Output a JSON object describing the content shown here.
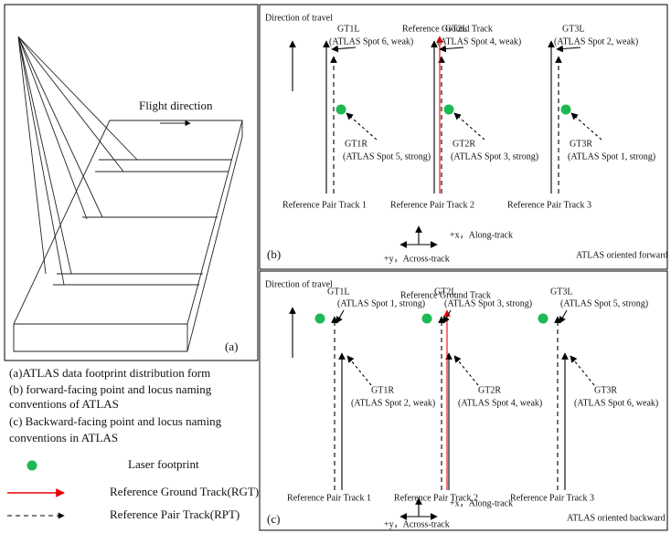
{
  "panel_a": {
    "flight_direction": "Flight direction",
    "label": "(a)"
  },
  "legend": {
    "captions": [
      "(a)ATLAS data footprint distribution form",
      "(b) forward-facing point and locus naming",
      "conventions of ATLAS",
      "(c) Backward-facing point and locus naming",
      "conventions in ATLAS"
    ],
    "items": [
      "Laser footprint",
      "Reference Ground Track(RGT)",
      "Reference  Pair Track(RPT)"
    ]
  },
  "panels": [
    {
      "direction": "Direction of travel",
      "rgt": "Reference Ground Track",
      "label": "(b)",
      "along": "+x，Along-track",
      "across": "+y，Across-track",
      "orientation": "ATLAS oriented forward",
      "pairs": [
        {
          "left": "GT1L",
          "left_spot": "(ATLAS Spot 6, weak)",
          "right": "GT1R",
          "right_spot": "(ATLAS Spot 5, strong)",
          "name": "Reference Pair Track 1"
        },
        {
          "left": "GT2L",
          "left_spot": "(ATLAS Spot 4, weak)",
          "right": "GT2R",
          "right_spot": "(ATLAS Spot 3, strong)",
          "name": "Reference Pair Track 2"
        },
        {
          "left": "GT3L",
          "left_spot": "(ATLAS Spot 2, weak)",
          "right": "GT3R",
          "right_spot": "(ATLAS Spot 1, strong)",
          "name": "Reference Pair Track 3"
        }
      ]
    },
    {
      "direction": "Direction of travel",
      "rgt": "Reference Ground Track",
      "label": "(c)",
      "along": "+x，Along-track",
      "across": "+y，Across-track",
      "orientation": "ATLAS oriented backward",
      "pairs": [
        {
          "left": "GT1L",
          "left_spot": "(ATLAS Spot 1, strong)",
          "right": "GT1R",
          "right_spot": "(ATLAS Spot 2, weak)",
          "name": "Reference Pair Track 1"
        },
        {
          "left": "GT2L",
          "left_spot": "(ATLAS Spot 3, strong)",
          "right": "GT2R",
          "right_spot": "(ATLAS Spot 4, weak)",
          "name": "Reference Pair Track 2"
        },
        {
          "left": "GT3L",
          "left_spot": "(ATLAS Spot 5, strong)",
          "right": "GT3R",
          "right_spot": "(ATLAS Spot 6, weak)",
          "name": "Reference Pair Track 3"
        }
      ]
    }
  ]
}
